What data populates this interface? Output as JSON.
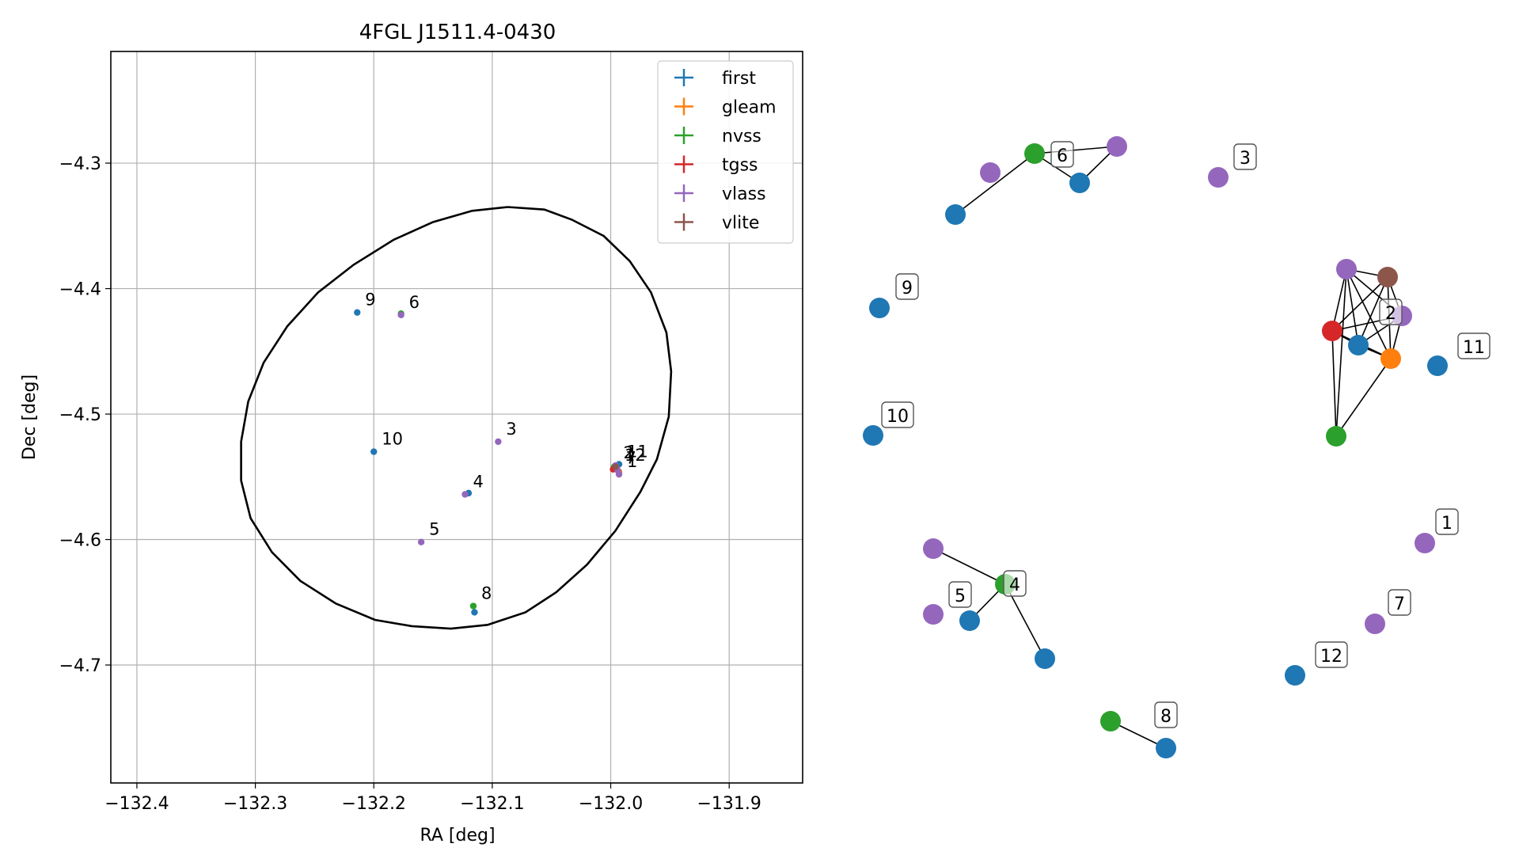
{
  "chart_data": [
    {
      "type": "scatter",
      "title": "4FGL J1511.4-0430",
      "xlabel": "RA [deg]",
      "ylabel": "Dec [deg]",
      "xlim": [
        -132.422,
        -131.838
      ],
      "ylim": [
        -4.794,
        -4.211
      ],
      "xticks": [
        -132.4,
        -132.3,
        -132.2,
        -132.1,
        -132.0,
        -131.9
      ],
      "xtick_labels": [
        "−132.4",
        "−132.3",
        "−132.2",
        "−132.1",
        "−132.0",
        "−131.9"
      ],
      "yticks": [
        -4.3,
        -4.4,
        -4.5,
        -4.6,
        -4.7
      ],
      "ytick_labels": [
        "−4.3",
        "−4.4",
        "−4.5",
        "−4.6",
        "−4.7"
      ],
      "grid": true,
      "legend_position": "upper right",
      "series": [
        {
          "name": "first",
          "color": "#1f77b4",
          "points": [
            {
              "x": -132.214,
              "y": -4.419,
              "label": "9"
            },
            {
              "x": -132.2,
              "y": -4.53,
              "label": "10"
            },
            {
              "x": -132.12,
              "y": -4.563,
              "label": ""
            },
            {
              "x": -132.115,
              "y": -4.658,
              "label": ""
            },
            {
              "x": -131.993,
              "y": -4.54,
              "label": "11"
            },
            {
              "x": -131.996,
              "y": -4.543,
              "label": ""
            }
          ]
        },
        {
          "name": "gleam",
          "color": "#ff7f0e",
          "points": [
            {
              "x": -131.993,
              "y": -4.546,
              "label": ""
            }
          ]
        },
        {
          "name": "nvss",
          "color": "#2ca02c",
          "points": [
            {
              "x": -132.116,
              "y": -4.653,
              "label": "8"
            },
            {
              "x": -132.177,
              "y": -4.42,
              "label": ""
            },
            {
              "x": -131.997,
              "y": -4.542,
              "label": ""
            }
          ]
        },
        {
          "name": "tgss",
          "color": "#d62728",
          "points": [
            {
              "x": -131.998,
              "y": -4.544,
              "label": ""
            }
          ]
        },
        {
          "name": "vlass",
          "color": "#9467bd",
          "points": [
            {
              "x": -132.177,
              "y": -4.421,
              "label": "6"
            },
            {
              "x": -132.095,
              "y": -4.522,
              "label": "3"
            },
            {
              "x": -132.123,
              "y": -4.564,
              "label": "4"
            },
            {
              "x": -132.16,
              "y": -4.602,
              "label": "5"
            },
            {
              "x": -131.993,
              "y": -4.548,
              "label": "1"
            },
            {
              "x": -131.996,
              "y": -4.541,
              "label": "2"
            },
            {
              "x": -131.994,
              "y": -4.545,
              "label": "7"
            },
            {
              "x": -131.995,
              "y": -4.543,
              "label": "12"
            }
          ]
        },
        {
          "name": "vlite",
          "color": "#8c564b",
          "points": [
            {
              "x": -131.996,
              "y": -4.542,
              "label": ""
            }
          ]
        }
      ],
      "ellipse": {
        "color": "#000000",
        "points": [
          [
            -132.087,
            -4.335
          ],
          [
            -132.056,
            -4.337
          ],
          [
            -132.033,
            -4.345
          ],
          [
            -132.006,
            -4.358
          ],
          [
            -131.984,
            -4.378
          ],
          [
            -131.966,
            -4.403
          ],
          [
            -131.953,
            -4.435
          ],
          [
            -131.949,
            -4.466
          ],
          [
            -131.951,
            -4.502
          ],
          [
            -131.961,
            -4.536
          ],
          [
            -131.975,
            -4.562
          ],
          [
            -131.996,
            -4.593
          ],
          [
            -132.02,
            -4.62
          ],
          [
            -132.046,
            -4.642
          ],
          [
            -132.072,
            -4.658
          ],
          [
            -132.104,
            -4.668
          ],
          [
            -132.135,
            -4.671
          ],
          [
            -132.168,
            -4.669
          ],
          [
            -132.199,
            -4.664
          ],
          [
            -132.232,
            -4.651
          ],
          [
            -132.262,
            -4.633
          ],
          [
            -132.286,
            -4.61
          ],
          [
            -132.304,
            -4.583
          ],
          [
            -132.312,
            -4.553
          ],
          [
            -132.312,
            -4.522
          ],
          [
            -132.306,
            -4.49
          ],
          [
            -132.293,
            -4.459
          ],
          [
            -132.273,
            -4.43
          ],
          [
            -132.247,
            -4.403
          ],
          [
            -132.217,
            -4.381
          ],
          [
            -132.183,
            -4.361
          ],
          [
            -132.15,
            -4.347
          ],
          [
            -132.117,
            -4.338
          ],
          [
            -132.087,
            -4.335
          ]
        ]
      }
    },
    {
      "type": "network",
      "nodes": [
        {
          "id": "n1",
          "color": "#9467bd",
          "label": "1"
        },
        {
          "id": "n2",
          "color": "#1f77b4",
          "label": "12"
        },
        {
          "id": "n3",
          "color": "#9467bd",
          "label": "7"
        },
        {
          "id": "n4",
          "color": "#1f77b4",
          "label": "11"
        },
        {
          "id": "n5",
          "color": "#1f77b4",
          "label": "9"
        },
        {
          "id": "n6",
          "color": "#1f77b4",
          "label": "10"
        },
        {
          "id": "n7",
          "color": "#9467bd",
          "label": "3"
        },
        {
          "id": "n8",
          "color": "#2ca02c",
          "label": "6"
        },
        {
          "id": "n9",
          "color": "#1f77b4",
          "label": ""
        },
        {
          "id": "n10",
          "color": "#9467bd",
          "label": ""
        },
        {
          "id": "n11",
          "color": "#1f77b4",
          "label": ""
        },
        {
          "id": "n12",
          "color": "#9467bd",
          "label": ""
        },
        {
          "id": "n13",
          "color": "#9467bd",
          "label": ""
        },
        {
          "id": "n14",
          "color": "#8c564b",
          "label": ""
        },
        {
          "id": "n15",
          "color": "#9467bd",
          "label": "2"
        },
        {
          "id": "n16",
          "color": "#d62728",
          "label": ""
        },
        {
          "id": "n17",
          "color": "#1f77b4",
          "label": ""
        },
        {
          "id": "n18",
          "color": "#ff7f0e",
          "label": ""
        },
        {
          "id": "n19",
          "color": "#2ca02c",
          "label": ""
        },
        {
          "id": "n20",
          "color": "#9467bd",
          "label": ""
        },
        {
          "id": "n21",
          "color": "#9467bd",
          "label": "5"
        },
        {
          "id": "n22",
          "color": "#1f77b4",
          "label": ""
        },
        {
          "id": "n23",
          "color": "#2ca02c",
          "label": "4"
        },
        {
          "id": "n24",
          "color": "#1f77b4",
          "label": ""
        },
        {
          "id": "n25",
          "color": "#2ca02c",
          "label": ""
        },
        {
          "id": "n26",
          "color": "#1f77b4",
          "label": "8"
        }
      ],
      "edges": [
        [
          "n9",
          "n8"
        ],
        [
          "n8",
          "n10"
        ],
        [
          "n8",
          "n11"
        ],
        [
          "n10",
          "n11"
        ],
        [
          "n13",
          "n14"
        ],
        [
          "n13",
          "n16"
        ],
        [
          "n13",
          "n17"
        ],
        [
          "n13",
          "n18"
        ],
        [
          "n13",
          "n15"
        ],
        [
          "n13",
          "n19"
        ],
        [
          "n14",
          "n16"
        ],
        [
          "n14",
          "n17"
        ],
        [
          "n14",
          "n18"
        ],
        [
          "n14",
          "n15"
        ],
        [
          "n16",
          "n17"
        ],
        [
          "n16",
          "n18"
        ],
        [
          "n16",
          "n15"
        ],
        [
          "n16",
          "n19"
        ],
        [
          "n17",
          "n18"
        ],
        [
          "n17",
          "n15"
        ],
        [
          "n18",
          "n15"
        ],
        [
          "n18",
          "n19"
        ],
        [
          "n20",
          "n23"
        ],
        [
          "n22",
          "n23"
        ],
        [
          "n23",
          "n24"
        ],
        [
          "n25",
          "n26"
        ]
      ]
    }
  ]
}
